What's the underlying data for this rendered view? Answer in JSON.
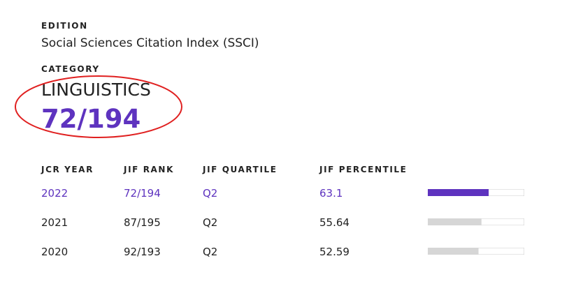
{
  "edition": {
    "label": "EDITION",
    "value": "Social Sciences Citation Index (SSCI)"
  },
  "category": {
    "label": "CATEGORY",
    "name": "LINGUISTICS",
    "rank": "72/194"
  },
  "table": {
    "headers": [
      "JCR YEAR",
      "JIF RANK",
      "JIF QUARTILE",
      "JIF PERCENTILE"
    ],
    "rows": [
      [
        "2022",
        "72/194",
        "Q2",
        63.1
      ],
      [
        "2021",
        "87/195",
        "Q2",
        55.64
      ],
      [
        "2020",
        "92/193",
        "Q2",
        52.59
      ]
    ]
  }
}
